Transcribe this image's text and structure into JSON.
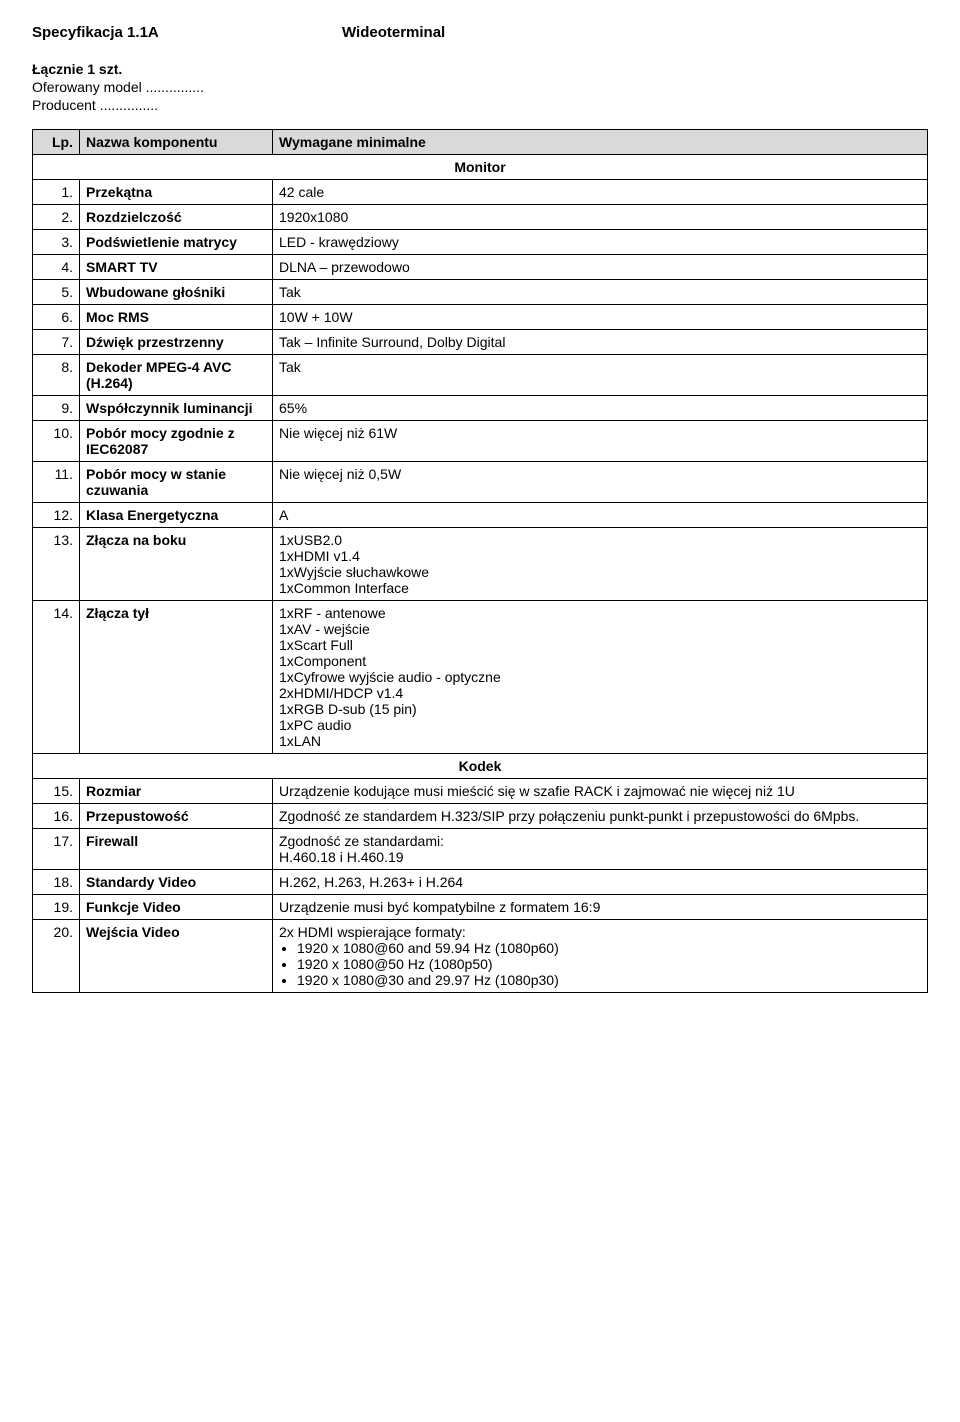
{
  "header": {
    "spec_no": "Specyfikacja 1.1A",
    "title": "Wideoterminal",
    "qty": "Łącznie 1 szt.",
    "model_label": "Oferowany model",
    "producer_label": "Producent",
    "dots": "..............."
  },
  "table": {
    "head": {
      "lp": "Lp.",
      "name": "Nazwa komponentu",
      "val": "Wymagane minimalne"
    },
    "section_monitor": "Monitor",
    "section_kodek": "Kodek",
    "rows": {
      "r1": {
        "lp": "1.",
        "name": "Przekątna",
        "val": "42 cale"
      },
      "r2": {
        "lp": "2.",
        "name": "Rozdzielczość",
        "val": "1920x1080"
      },
      "r3": {
        "lp": "3.",
        "name": "Podświetlenie matrycy",
        "val": "LED - krawędziowy"
      },
      "r4": {
        "lp": "4.",
        "name": "SMART TV",
        "val": "DLNA – przewodowo"
      },
      "r5": {
        "lp": "5.",
        "name": "Wbudowane głośniki",
        "val": "Tak"
      },
      "r6": {
        "lp": "6.",
        "name": "Moc RMS",
        "val": "10W + 10W"
      },
      "r7": {
        "lp": "7.",
        "name": "Dźwięk przestrzenny",
        "val": "Tak – Infinite Surround, Dolby Digital"
      },
      "r8": {
        "lp": "8.",
        "name": "Dekoder MPEG-4 AVC (H.264)",
        "val": "Tak"
      },
      "r9": {
        "lp": "9.",
        "name": "Współczynnik luminancji",
        "val": "65%"
      },
      "r10": {
        "lp": "10.",
        "name": "Pobór mocy zgodnie z IEC62087",
        "val": "Nie więcej niż 61W"
      },
      "r11": {
        "lp": "11.",
        "name": "Pobór mocy w stanie czuwania",
        "val": "Nie więcej niż 0,5W"
      },
      "r12": {
        "lp": "12.",
        "name": "Klasa Energetyczna",
        "val": "A"
      },
      "r13": {
        "lp": "13.",
        "name": "Złącza na boku",
        "val": "1xUSB2.0\n1xHDMI v1.4\n1xWyjście słuchawkowe\n1xCommon Interface"
      },
      "r14": {
        "lp": "14.",
        "name": "Złącza tył",
        "val": "1xRF - antenowe\n1xAV - wejście\n1xScart Full\n1xComponent\n1xCyfrowe wyjście audio - optyczne\n2xHDMI/HDCP v1.4\n1xRGB D-sub (15 pin)\n1xPC audio\n1xLAN"
      },
      "r15": {
        "lp": "15.",
        "name": "Rozmiar",
        "val": "Urządzenie kodujące musi mieścić się w szafie RACK i zajmować nie więcej niż 1U"
      },
      "r16": {
        "lp": "16.",
        "name": "Przepustowość",
        "val": "Zgodność ze standardem H.323/SIP przy połączeniu punkt-punkt i przepustowości do 6Mpbs."
      },
      "r17": {
        "lp": "17.",
        "name": "Firewall",
        "val": "Zgodność ze standardami:\nH.460.18 i H.460.19"
      },
      "r18": {
        "lp": "18.",
        "name": "Standardy Video",
        "val": "H.262, H.263, H.263+ i H.264"
      },
      "r19": {
        "lp": "19.",
        "name": "Funkcje Video",
        "val": "Urządzenie musi być kompatybilne z formatem 16:9"
      },
      "r20": {
        "lp": "20.",
        "name": "Wejścia Video",
        "val_line": "2x HDMI wspierające formaty:",
        "bullets": [
          "1920 x 1080@60 and 59.94 Hz (1080p60)",
          "1920 x 1080@50 Hz (1080p50)",
          "1920 x 1080@30 and 29.97 Hz (1080p30)"
        ]
      }
    }
  }
}
